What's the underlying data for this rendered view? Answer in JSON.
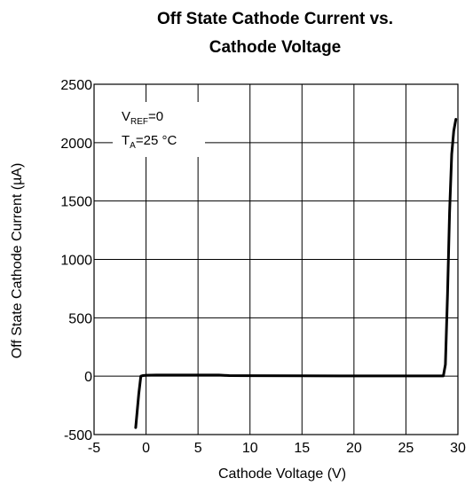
{
  "chart_data": {
    "type": "line",
    "title_line1": "Off State Cathode Current vs.",
    "title_line2": "Cathode Voltage",
    "xlabel": "Cathode Voltage (V)",
    "ylabel": "Off State Cathode Current (µA)",
    "xlim": [
      -5,
      30
    ],
    "ylim": [
      -500,
      2500
    ],
    "x_ticks": [
      -5,
      0,
      5,
      10,
      15,
      20,
      25,
      30
    ],
    "y_ticks": [
      -500,
      0,
      500,
      1000,
      1500,
      2000,
      2500
    ],
    "grid": true,
    "annotations": [
      {
        "main": "V",
        "sub": "REF",
        "rest": "=0"
      },
      {
        "main": "T",
        "sub": "A",
        "rest": "=25 °C"
      }
    ],
    "series": [
      {
        "x": [
          -1.0,
          -0.7,
          -0.5,
          -0.3,
          0.0,
          1.0,
          3.0,
          5.0,
          7.0,
          8.0,
          10.0,
          15.0,
          20.0,
          25.0,
          28.0,
          28.6,
          28.8,
          29.0,
          29.2,
          29.4,
          29.6,
          29.8
        ],
        "y": [
          -440,
          -150,
          0,
          5,
          8,
          10,
          10,
          10,
          10,
          5,
          4,
          3,
          2,
          2,
          2,
          2,
          100,
          700,
          1400,
          1900,
          2100,
          2200
        ]
      }
    ]
  }
}
